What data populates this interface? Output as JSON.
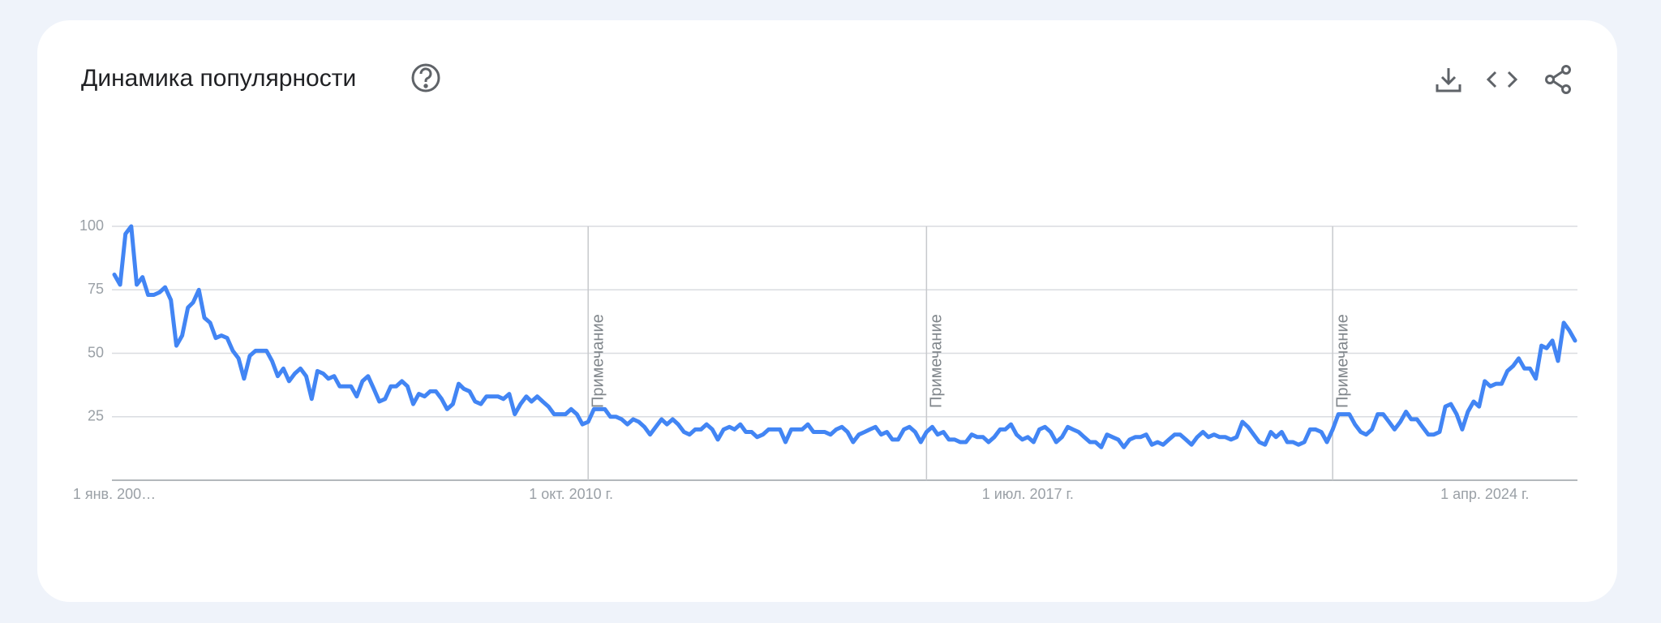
{
  "chart_data": {
    "type": "line",
    "title": "Динамика популярности",
    "color": "#4285f4",
    "x": [
      "2004-01-01",
      "2004-02-01",
      "2004-03-01",
      "2004-04-01",
      "2004-05-01",
      "2004-06-01",
      "2004-07-01",
      "2004-08-01",
      "2004-09-01",
      "2004-10-01",
      "2004-11-01",
      "2004-12-01",
      "2005-01-01",
      "2005-02-01",
      "2005-03-01",
      "2005-04-01",
      "2005-05-01",
      "2005-06-01",
      "2005-07-01",
      "2005-08-01",
      "2005-09-01",
      "2005-10-01",
      "2005-11-01",
      "2005-12-01",
      "2006-01-01",
      "2006-02-01",
      "2006-03-01",
      "2006-04-01",
      "2006-05-01",
      "2006-06-01",
      "2006-07-01",
      "2006-08-01",
      "2006-09-01",
      "2006-10-01",
      "2006-11-01",
      "2006-12-01",
      "2007-01-01",
      "2007-02-01",
      "2007-03-01",
      "2007-04-01",
      "2007-05-01",
      "2007-06-01",
      "2007-07-01",
      "2007-08-01",
      "2007-09-01",
      "2007-10-01",
      "2007-11-01",
      "2007-12-01",
      "2008-01-01",
      "2008-02-01",
      "2008-03-01",
      "2008-04-01",
      "2008-05-01",
      "2008-06-01",
      "2008-07-01",
      "2008-08-01",
      "2008-09-01",
      "2008-10-01",
      "2008-11-01",
      "2008-12-01",
      "2009-01-01",
      "2009-02-01",
      "2009-03-01",
      "2009-04-01",
      "2009-05-01",
      "2009-06-01",
      "2009-07-01",
      "2009-08-01",
      "2009-09-01",
      "2009-10-01",
      "2009-11-01",
      "2009-12-01",
      "2010-01-01",
      "2010-02-01",
      "2010-03-01",
      "2010-04-01",
      "2010-05-01",
      "2010-06-01",
      "2010-07-01",
      "2010-08-01",
      "2010-09-01",
      "2010-10-01",
      "2010-11-01",
      "2010-12-01",
      "2011-01-01",
      "2011-02-01",
      "2011-03-01",
      "2011-04-01",
      "2011-05-01",
      "2011-06-01",
      "2011-07-01",
      "2011-08-01",
      "2011-09-01",
      "2011-10-01",
      "2011-11-01",
      "2011-12-01",
      "2012-01-01",
      "2012-02-01",
      "2012-03-01",
      "2012-04-01",
      "2012-05-01",
      "2012-06-01",
      "2012-07-01",
      "2012-08-01",
      "2012-09-01",
      "2012-10-01",
      "2012-11-01",
      "2012-12-01",
      "2013-01-01",
      "2013-02-01",
      "2013-03-01",
      "2013-04-01",
      "2013-05-01",
      "2013-06-01",
      "2013-07-01",
      "2013-08-01",
      "2013-09-01",
      "2013-10-01",
      "2013-11-01",
      "2013-12-01",
      "2014-01-01",
      "2014-02-01",
      "2014-03-01",
      "2014-04-01",
      "2014-05-01",
      "2014-06-01",
      "2014-07-01",
      "2014-08-01",
      "2014-09-01",
      "2014-10-01",
      "2014-11-01",
      "2014-12-01",
      "2015-01-01",
      "2015-02-01",
      "2015-03-01",
      "2015-04-01",
      "2015-05-01",
      "2015-06-01",
      "2015-07-01",
      "2015-08-01",
      "2015-09-01",
      "2015-10-01",
      "2015-11-01",
      "2015-12-01",
      "2016-01-01",
      "2016-02-01",
      "2016-03-01",
      "2016-04-01",
      "2016-05-01",
      "2016-06-01",
      "2016-07-01",
      "2016-08-01",
      "2016-09-01",
      "2016-10-01",
      "2016-11-01",
      "2016-12-01",
      "2017-01-01",
      "2017-02-01",
      "2017-03-01",
      "2017-04-01",
      "2017-05-01",
      "2017-06-01",
      "2017-07-01",
      "2017-08-01",
      "2017-09-01",
      "2017-10-01",
      "2017-11-01",
      "2017-12-01",
      "2018-01-01",
      "2018-02-01",
      "2018-03-01",
      "2018-04-01",
      "2018-05-01",
      "2018-06-01",
      "2018-07-01",
      "2018-08-01",
      "2018-09-01",
      "2018-10-01",
      "2018-11-01",
      "2018-12-01",
      "2019-01-01",
      "2019-02-01",
      "2019-03-01",
      "2019-04-01",
      "2019-05-01",
      "2019-06-01",
      "2019-07-01",
      "2019-08-01",
      "2019-09-01",
      "2019-10-01",
      "2019-11-01",
      "2019-12-01",
      "2020-01-01",
      "2020-02-01",
      "2020-03-01",
      "2020-04-01",
      "2020-05-01",
      "2020-06-01",
      "2020-07-01",
      "2020-08-01",
      "2020-09-01",
      "2020-10-01",
      "2020-11-01",
      "2020-12-01",
      "2021-01-01",
      "2021-02-01",
      "2021-03-01",
      "2021-04-01",
      "2021-05-01",
      "2021-06-01",
      "2021-07-01",
      "2021-08-01",
      "2021-09-01",
      "2021-10-01",
      "2021-11-01",
      "2021-12-01",
      "2022-01-01",
      "2022-02-01",
      "2022-03-01",
      "2022-04-01",
      "2022-05-01",
      "2022-06-01",
      "2022-07-01",
      "2022-08-01",
      "2022-09-01",
      "2022-10-01",
      "2022-11-01",
      "2022-12-01",
      "2023-01-01",
      "2023-02-01",
      "2023-03-01",
      "2023-04-01",
      "2023-05-01",
      "2023-06-01",
      "2023-07-01",
      "2023-08-01",
      "2023-09-01",
      "2023-10-01",
      "2023-11-01",
      "2023-12-01",
      "2024-01-01",
      "2024-02-01",
      "2024-03-01",
      "2024-04-01",
      "2024-05-01",
      "2024-06-01",
      "2024-07-01",
      "2024-08-01",
      "2024-09-01",
      "2024-10-01",
      "2024-11-01",
      "2024-12-01",
      "2025-01-01",
      "2025-02-01",
      "2025-03-01",
      "2025-04-01",
      "2025-05-01",
      "2025-06-01",
      "2025-07-01",
      "2025-08-01"
    ],
    "values": [
      81,
      77,
      97,
      100,
      77,
      80,
      73,
      73,
      74,
      76,
      71,
      53,
      57,
      68,
      70,
      75,
      64,
      62,
      56,
      57,
      56,
      51,
      48,
      40,
      49,
      51,
      51,
      51,
      47,
      41,
      44,
      39,
      42,
      44,
      41,
      32,
      43,
      42,
      40,
      41,
      37,
      37,
      37,
      33,
      39,
      41,
      36,
      31,
      32,
      37,
      37,
      39,
      37,
      30,
      34,
      33,
      35,
      35,
      32,
      28,
      30,
      38,
      36,
      35,
      31,
      30,
      33,
      33,
      33,
      32,
      34,
      26,
      30,
      33,
      31,
      33,
      31,
      29,
      26,
      26,
      26,
      28,
      26,
      22,
      23,
      28,
      28,
      28,
      25,
      25,
      24,
      22,
      24,
      23,
      21,
      18,
      21,
      24,
      22,
      24,
      22,
      19,
      18,
      20,
      20,
      22,
      20,
      16,
      20,
      21,
      20,
      22,
      19,
      19,
      17,
      18,
      20,
      20,
      20,
      15,
      20,
      20,
      20,
      22,
      19,
      19,
      19,
      18,
      20,
      21,
      19,
      15,
      18,
      19,
      20,
      21,
      18,
      19,
      16,
      16,
      20,
      21,
      19,
      15,
      19,
      21,
      18,
      19,
      16,
      16,
      15,
      15,
      18,
      17,
      17,
      15,
      17,
      20,
      20,
      22,
      18,
      16,
      17,
      15,
      20,
      21,
      19,
      15,
      17,
      21,
      20,
      19,
      17,
      15,
      15,
      13,
      18,
      17,
      16,
      13,
      16,
      17,
      17,
      18,
      14,
      15,
      14,
      16,
      18,
      18,
      16,
      14,
      17,
      19,
      17,
      18,
      17,
      17,
      16,
      17,
      23,
      21,
      18,
      15,
      14,
      19,
      17,
      19,
      15,
      15,
      14,
      15,
      20,
      20,
      19,
      15,
      20,
      26,
      26,
      26,
      22,
      19,
      18,
      20,
      26,
      26,
      23,
      20,
      23,
      27,
      24,
      24,
      21,
      18,
      18,
      19,
      29,
      30,
      26,
      20,
      27,
      31,
      29,
      39,
      37,
      38,
      38,
      43,
      45,
      48,
      44,
      44,
      40,
      53,
      52,
      55,
      47,
      62,
      59,
      55
    ],
    "ylim": [
      0,
      100
    ],
    "yticks": [
      25,
      50,
      75,
      100
    ],
    "grid": true,
    "xticks": [
      {
        "value": "2004-01-01",
        "label": "1 янв. 200…"
      },
      {
        "value": "2010-10-01",
        "label": "1 окт. 2010 г."
      },
      {
        "value": "2017-07-01",
        "label": "1 июл. 2017 г."
      },
      {
        "value": "2024-04-01",
        "label": "1 апр. 2024 г."
      }
    ],
    "annotations": [
      {
        "x": "2011-01-01",
        "label": "Примечание"
      },
      {
        "x": "2016-01-01",
        "label": "Примечание"
      },
      {
        "x": "2022-01-01",
        "label": "Примечание"
      }
    ]
  }
}
